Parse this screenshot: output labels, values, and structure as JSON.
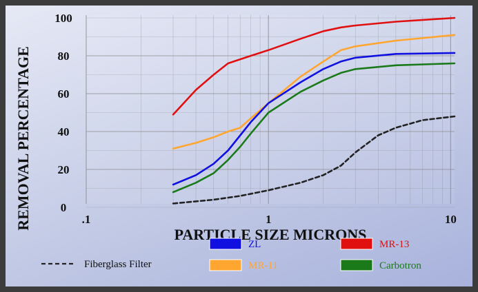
{
  "colors": {
    "zl": "#1010e0",
    "mr13": "#e01010",
    "mr11": "#ffa630",
    "carbotron": "#1a7a1a",
    "fiberglass": "#222222",
    "grid": "#888888"
  },
  "chart_data": {
    "type": "line",
    "xlabel": "PARTICLE SIZE MICRONS",
    "ylabel": "REMOVAL PERCENTAGE",
    "xscale": "log",
    "xlim": [
      0.1,
      10.5
    ],
    "ylim": [
      0,
      100
    ],
    "x_tick_labels": [
      ".1",
      "1",
      "10"
    ],
    "y_tick_labels": [
      "0",
      "20",
      "40",
      "60",
      "80",
      "100"
    ],
    "grid": true,
    "series": [
      {
        "name": "MR-13",
        "color": "#e01010",
        "dashed": false,
        "points": [
          [
            0.3,
            49
          ],
          [
            0.4,
            62
          ],
          [
            0.5,
            70
          ],
          [
            0.6,
            76
          ],
          [
            0.8,
            80
          ],
          [
            1.0,
            83
          ],
          [
            1.5,
            89
          ],
          [
            2.0,
            93
          ],
          [
            2.5,
            95
          ],
          [
            3,
            96
          ],
          [
            5,
            98
          ],
          [
            10.5,
            100
          ]
        ]
      },
      {
        "name": "MR-11",
        "color": "#ffa630",
        "dashed": false,
        "points": [
          [
            0.3,
            31
          ],
          [
            0.4,
            34
          ],
          [
            0.5,
            37
          ],
          [
            0.6,
            40
          ],
          [
            0.7,
            42
          ],
          [
            0.8,
            47
          ],
          [
            1.0,
            55
          ],
          [
            1.5,
            69
          ],
          [
            2.0,
            77
          ],
          [
            2.5,
            83
          ],
          [
            3,
            85
          ],
          [
            5,
            88
          ],
          [
            10.5,
            91
          ]
        ]
      },
      {
        "name": "ZL",
        "color": "#1010e0",
        "dashed": false,
        "points": [
          [
            0.3,
            12
          ],
          [
            0.4,
            17
          ],
          [
            0.5,
            23
          ],
          [
            0.6,
            30
          ],
          [
            0.7,
            38
          ],
          [
            0.8,
            45
          ],
          [
            1.0,
            55
          ],
          [
            1.5,
            66
          ],
          [
            2.0,
            73
          ],
          [
            2.5,
            77
          ],
          [
            3,
            79
          ],
          [
            5,
            81
          ],
          [
            10.5,
            81.5
          ]
        ]
      },
      {
        "name": "Carbotron",
        "color": "#1a7a1a",
        "dashed": false,
        "points": [
          [
            0.3,
            8
          ],
          [
            0.4,
            13
          ],
          [
            0.5,
            18
          ],
          [
            0.6,
            25
          ],
          [
            0.7,
            32
          ],
          [
            0.8,
            39
          ],
          [
            1.0,
            50
          ],
          [
            1.5,
            61
          ],
          [
            2.0,
            67
          ],
          [
            2.5,
            71
          ],
          [
            3,
            73
          ],
          [
            5,
            75
          ],
          [
            10.5,
            76
          ]
        ]
      },
      {
        "name": "Fiberglass Filter",
        "color": "#222222",
        "dashed": true,
        "points": [
          [
            0.3,
            2
          ],
          [
            0.5,
            4
          ],
          [
            0.7,
            6
          ],
          [
            1.0,
            9
          ],
          [
            1.5,
            13
          ],
          [
            2.0,
            17
          ],
          [
            2.5,
            22
          ],
          [
            3,
            29
          ],
          [
            4,
            38
          ],
          [
            5,
            42
          ],
          [
            7,
            46
          ],
          [
            10.5,
            48
          ]
        ]
      }
    ],
    "legend": [
      {
        "name": "Fiberglass Filter",
        "dashed": true,
        "color": "#222222"
      },
      {
        "name": "ZL",
        "dashed": false,
        "color": "#1010e0"
      },
      {
        "name": "MR-11",
        "dashed": false,
        "color": "#ffa630"
      },
      {
        "name": "MR-13",
        "dashed": false,
        "color": "#e01010"
      },
      {
        "name": "Carbotron",
        "dashed": false,
        "color": "#1a7a1a"
      }
    ]
  }
}
